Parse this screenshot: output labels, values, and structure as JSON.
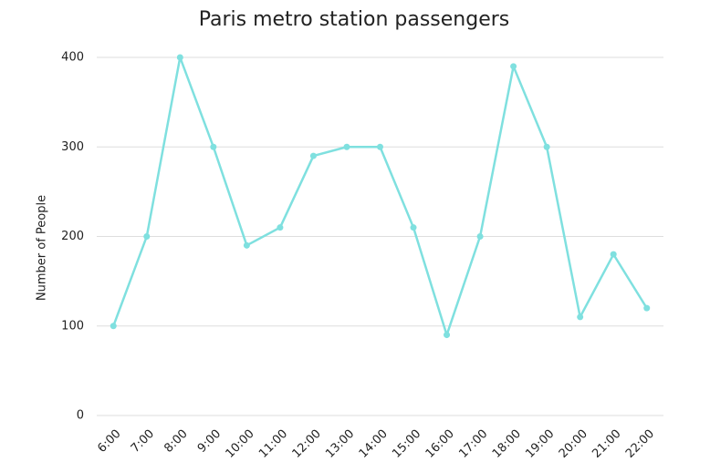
{
  "chart_data": {
    "type": "line",
    "title": "Paris metro station passengers",
    "y_label": "Number of People",
    "categories": [
      "6:00",
      "7:00",
      "8:00",
      "9:00",
      "10:00",
      "11:00",
      "12:00",
      "13:00",
      "14:00",
      "15:00",
      "16:00",
      "17:00",
      "18:00",
      "19:00",
      "20:00",
      "21:00",
      "22:00"
    ],
    "values": [
      100,
      200,
      400,
      300,
      190,
      210,
      290,
      300,
      300,
      210,
      90,
      200,
      390,
      300,
      110,
      180,
      120
    ],
    "color": "#7fe0df",
    "ylim": [
      0,
      400
    ],
    "yticks": [
      0,
      100,
      200,
      300,
      400
    ],
    "grid": true
  }
}
